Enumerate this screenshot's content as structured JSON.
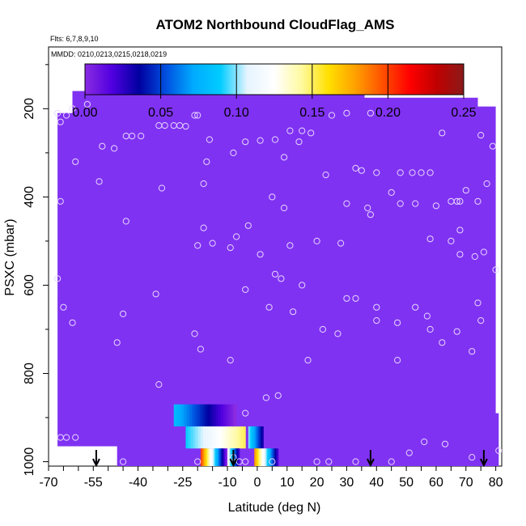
{
  "chart_data": {
    "type": "heatmap",
    "title": "ATOM2 Northbound CloudFlag_AMS",
    "notes": {
      "flights": "Flts: 6,7,8,9,10",
      "dates": "MMDD: 0210,0213,0215,0218,0219"
    },
    "xlabel": "Latitude (deg N)",
    "ylabel": "PSXC (mbar)",
    "xlim": [
      -70,
      82
    ],
    "ylim": [
      1010,
      60
    ],
    "y_reversed": true,
    "x_ticks": [
      "-70",
      "-55",
      "-40",
      "-25",
      "-10",
      "0",
      "10",
      "20",
      "30",
      "40",
      "50",
      "60",
      "70",
      "80"
    ],
    "x_tick_values": [
      -70,
      -55,
      -40,
      -25,
      -10,
      0,
      10,
      20,
      30,
      40,
      50,
      60,
      70,
      80
    ],
    "y_ticks": [
      "200",
      "400",
      "600",
      "800",
      "1000"
    ],
    "y_tick_values": [
      200,
      400,
      600,
      800,
      1000
    ],
    "colorbar": {
      "ticks": [
        "0.00",
        "0.05",
        "0.10",
        "0.15",
        "0.20",
        "0.25"
      ],
      "tick_values": [
        0,
        0.05,
        0.1,
        0.15,
        0.2,
        0.25
      ],
      "range": [
        0,
        0.25
      ],
      "colors": [
        "#8a2be2",
        "#5000e0",
        "#0000a0",
        "#0050e0",
        "#00aaff",
        "#00ccff",
        "#e6f4ff",
        "#ffffff",
        "#fffaa0",
        "#ffe000",
        "#ffa000",
        "#ff5000",
        "#ff0000",
        "#c00000",
        "#8b1a1a"
      ]
    },
    "field_value": 0.0,
    "field_color": "#8032f2",
    "cloud_patches": [
      {
        "lat_start": -28,
        "lat_end": -7,
        "p_top": 870,
        "p_bottom": 920,
        "start_value": 0.08,
        "end_value": 0.0
      },
      {
        "lat_start": -24,
        "lat_end": -4,
        "p_top": 920,
        "p_bottom": 970,
        "start_value": 0.09,
        "end_value": 0.15
      },
      {
        "lat_start": -3,
        "lat_end": 2,
        "p_top": 920,
        "p_bottom": 970,
        "start_value": 0.1,
        "end_value": 0.03
      },
      {
        "lat_start": -19,
        "lat_end": -10,
        "p_top": 970,
        "p_bottom": 1010,
        "start_value": 0.2,
        "end_value": 0.0
      },
      {
        "lat_start": -10,
        "lat_end": -6,
        "p_top": 970,
        "p_bottom": 1010,
        "start_value": 0.12,
        "end_value": 0.02
      },
      {
        "lat_start": -1,
        "lat_end": 7,
        "p_top": 970,
        "p_bottom": 1010,
        "start_value": 0.18,
        "end_value": 0.02
      }
    ],
    "arrows_lat": [
      -54,
      -8,
      38,
      76
    ],
    "sample_points": [
      [
        -67,
        210
      ],
      [
        -66,
        230
      ],
      [
        -64,
        215
      ],
      [
        -62,
        200
      ],
      [
        -57,
        190
      ],
      [
        -52,
        285
      ],
      [
        -48,
        290
      ],
      [
        -44,
        262
      ],
      [
        -42,
        262
      ],
      [
        -39,
        262
      ],
      [
        -33,
        238
      ],
      [
        -31,
        238
      ],
      [
        -28,
        238
      ],
      [
        -26,
        238
      ],
      [
        -24,
        240
      ],
      [
        -21,
        215
      ],
      [
        -20,
        215
      ],
      [
        -16,
        270
      ],
      [
        -18,
        370
      ],
      [
        -17,
        320
      ],
      [
        -8,
        300
      ],
      [
        -4,
        275
      ],
      [
        1,
        272
      ],
      [
        6,
        270
      ],
      [
        9,
        310
      ],
      [
        11,
        250
      ],
      [
        14,
        275
      ],
      [
        15,
        250
      ],
      [
        18,
        255
      ],
      [
        23,
        350
      ],
      [
        25,
        215
      ],
      [
        30,
        210
      ],
      [
        33,
        335
      ],
      [
        35,
        340
      ],
      [
        38,
        210
      ],
      [
        40,
        345
      ],
      [
        48,
        345
      ],
      [
        52,
        345
      ],
      [
        55,
        345
      ],
      [
        58,
        345
      ],
      [
        62,
        255
      ],
      [
        65,
        410
      ],
      [
        67,
        410
      ],
      [
        68,
        410
      ],
      [
        70,
        385
      ],
      [
        74,
        410
      ],
      [
        75,
        260
      ],
      [
        77,
        370
      ],
      [
        79,
        285
      ],
      [
        -66,
        410
      ],
      [
        -61,
        320
      ],
      [
        -53,
        365
      ],
      [
        -44,
        455
      ],
      [
        -32,
        380
      ],
      [
        -20,
        510
      ],
      [
        -18,
        470
      ],
      [
        -15,
        505
      ],
      [
        -9,
        515
      ],
      [
        -7,
        490
      ],
      [
        -3,
        465
      ],
      [
        1,
        530
      ],
      [
        5,
        400
      ],
      [
        9,
        425
      ],
      [
        11,
        510
      ],
      [
        20,
        500
      ],
      [
        28,
        505
      ],
      [
        30,
        415
      ],
      [
        37,
        425
      ],
      [
        38,
        440
      ],
      [
        45,
        390
      ],
      [
        48,
        415
      ],
      [
        53,
        415
      ],
      [
        58,
        495
      ],
      [
        60,
        420
      ],
      [
        65,
        500
      ],
      [
        68,
        475
      ],
      [
        68,
        530
      ],
      [
        73,
        535
      ],
      [
        76,
        525
      ],
      [
        80,
        565
      ],
      [
        -67,
        585
      ],
      [
        -65,
        650
      ],
      [
        -62,
        685
      ],
      [
        -47,
        730
      ],
      [
        -45,
        665
      ],
      [
        -34,
        620
      ],
      [
        -21,
        710
      ],
      [
        -19,
        745
      ],
      [
        -9,
        770
      ],
      [
        -4,
        610
      ],
      [
        4,
        650
      ],
      [
        6,
        575
      ],
      [
        8,
        585
      ],
      [
        12,
        660
      ],
      [
        15,
        600
      ],
      [
        17,
        770
      ],
      [
        22,
        700
      ],
      [
        27,
        710
      ],
      [
        30,
        630
      ],
      [
        33,
        630
      ],
      [
        40,
        650
      ],
      [
        40,
        680
      ],
      [
        47,
        685
      ],
      [
        47,
        770
      ],
      [
        53,
        650
      ],
      [
        57,
        670
      ],
      [
        58,
        700
      ],
      [
        62,
        730
      ],
      [
        67,
        705
      ],
      [
        72,
        750
      ],
      [
        74,
        640
      ],
      [
        75,
        680
      ],
      [
        -33,
        825
      ],
      [
        3,
        855
      ],
      [
        7,
        850
      ],
      [
        -4,
        890
      ],
      [
        -66,
        945
      ],
      [
        -64,
        945
      ],
      [
        -61,
        945
      ],
      [
        -54,
        1000
      ],
      [
        -45,
        1000
      ],
      [
        -20,
        1000
      ],
      [
        -8,
        990
      ],
      [
        -6,
        1000
      ],
      [
        -4,
        1000
      ],
      [
        5,
        1000
      ],
      [
        20,
        1000
      ],
      [
        24,
        1000
      ],
      [
        33,
        1000
      ],
      [
        45,
        1000
      ],
      [
        51,
        980
      ],
      [
        56,
        955
      ],
      [
        63,
        960
      ],
      [
        72,
        990
      ],
      [
        81,
        975
      ]
    ]
  }
}
